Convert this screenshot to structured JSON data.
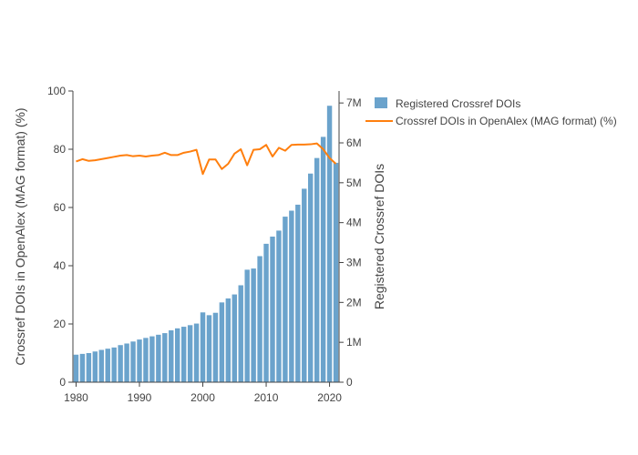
{
  "chart_data": {
    "type": "bar+line",
    "title": "",
    "x": {
      "label": "",
      "ticks": [
        "1980",
        "1990",
        "2000",
        "2010",
        "2020"
      ],
      "range": [
        1979.5,
        2021.5
      ]
    },
    "y_left": {
      "label": "Crossref DOIs in OpenAlex (MAG format) (%)",
      "ticks": [
        "0",
        "20",
        "40",
        "60",
        "80",
        "100"
      ],
      "range": [
        0,
        100
      ]
    },
    "y_right": {
      "label": "Registered Crossref DOIs",
      "ticks": [
        "0",
        "1M",
        "2M",
        "3M",
        "4M",
        "5M",
        "6M",
        "7M"
      ],
      "range": [
        0,
        7300000
      ]
    },
    "years": [
      1980,
      1981,
      1982,
      1983,
      1984,
      1985,
      1986,
      1987,
      1988,
      1989,
      1990,
      1991,
      1992,
      1993,
      1994,
      1995,
      1996,
      1997,
      1998,
      1999,
      2000,
      2001,
      2002,
      2003,
      2004,
      2005,
      2006,
      2007,
      2008,
      2009,
      2010,
      2011,
      2012,
      2013,
      2014,
      2015,
      2016,
      2017,
      2018,
      2019,
      2020,
      2021
    ],
    "series": [
      {
        "name": "Registered Crossref DOIs",
        "type": "bar",
        "color": "#6ba3cc",
        "axis": "right",
        "values": [
          690000,
          710000,
          730000,
          770000,
          810000,
          840000,
          870000,
          930000,
          970000,
          1020000,
          1070000,
          1110000,
          1150000,
          1190000,
          1230000,
          1300000,
          1350000,
          1390000,
          1430000,
          1470000,
          1750000,
          1680000,
          1740000,
          2000000,
          2100000,
          2200000,
          2430000,
          2820000,
          2850000,
          3160000,
          3470000,
          3650000,
          3800000,
          4150000,
          4300000,
          4450000,
          4850000,
          5230000,
          5620000,
          6150000,
          6930000,
          5500000
        ]
      },
      {
        "name": "Crossref DOIs in OpenAlex (MAG format) (%)",
        "type": "line",
        "color": "#ff7f0e",
        "axis": "left",
        "values": [
          75.8,
          76.6,
          76.0,
          76.2,
          76.6,
          77.0,
          77.4,
          77.8,
          78.0,
          77.6,
          77.8,
          77.5,
          77.8,
          78.0,
          78.8,
          78.0,
          78.0,
          78.8,
          79.2,
          79.8,
          71.5,
          76.5,
          76.5,
          73.2,
          75.0,
          78.5,
          80.0,
          74.5,
          79.8,
          80.0,
          81.5,
          77.5,
          80.5,
          79.5,
          81.5,
          81.6,
          81.6,
          81.7,
          82.0,
          80.0,
          77.0,
          75.0
        ]
      }
    ],
    "legend": {
      "placement": "top-right",
      "items": [
        {
          "label": "Registered Crossref DOIs",
          "color": "#6ba3cc",
          "kind": "bar"
        },
        {
          "label": "Crossref DOIs in OpenAlex (MAG format) (%)",
          "color": "#ff7f0e",
          "kind": "line"
        }
      ]
    }
  }
}
